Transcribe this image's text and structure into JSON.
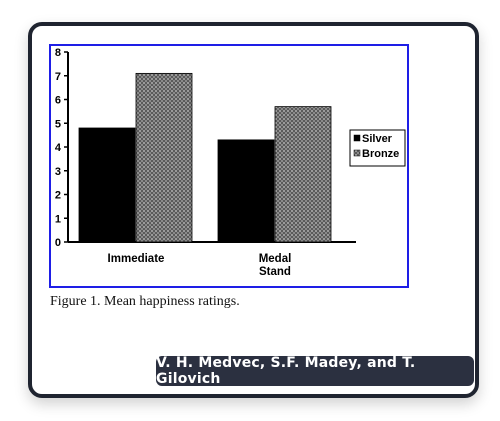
{
  "chart_data": {
    "type": "bar",
    "categories": [
      "Immediate",
      "Medal Stand"
    ],
    "series": [
      {
        "name": "Silver",
        "values": [
          4.8,
          4.3
        ]
      },
      {
        "name": "Bronze",
        "values": [
          7.1,
          5.7
        ]
      }
    ],
    "ylim": [
      0,
      8
    ],
    "yticks": [
      "0",
      "1",
      "2",
      "3",
      "4",
      "5",
      "6",
      "7",
      "8"
    ],
    "legend_placement": "right",
    "colors": {
      "Silver": "#000000",
      "Bronze": "#6e6e6e"
    }
  },
  "figure": {
    "caption": "Figure 1. Mean happiness ratings."
  },
  "credit": "V. H. Medvec, S.F. Madey, and T. Gilovich"
}
